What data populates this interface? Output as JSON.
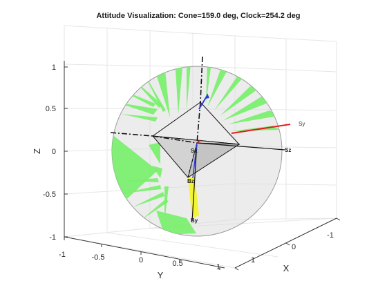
{
  "chart_data": {
    "type": "3d-attitude",
    "title": "Attitude Visualization: Cone=159.0 deg, Clock=254.2 deg",
    "xlabel": "X",
    "ylabel": "Y",
    "zlabel": "Z",
    "xlim": [
      -1,
      1
    ],
    "ylim": [
      -1,
      1
    ],
    "zlim": [
      -1,
      1
    ],
    "x_ticks": [
      "-1",
      "0",
      "1"
    ],
    "y_ticks": [
      "-1",
      "-0.5",
      "0",
      "0.5",
      "1"
    ],
    "z_ticks": [
      "-1",
      "-0.5",
      "0",
      "0.5",
      "1"
    ],
    "grid": true,
    "cone_deg": 159.0,
    "clock_deg": 254.2,
    "vectors": [
      {
        "label": "Sy",
        "color": "#e41a1c"
      },
      {
        "label": "Sz",
        "color": "#333333"
      },
      {
        "label": "Sx",
        "color": "#333333"
      },
      {
        "label": "Bz",
        "color": "#111111"
      },
      {
        "label": "By",
        "color": "#111111"
      }
    ],
    "colors": {
      "sphere": "#d9d9d9",
      "rays": "#77f06a",
      "sun_vector": "#e41a1c",
      "body_vector": "#2b3cd6",
      "cone_highlight": "#f4f425"
    }
  }
}
